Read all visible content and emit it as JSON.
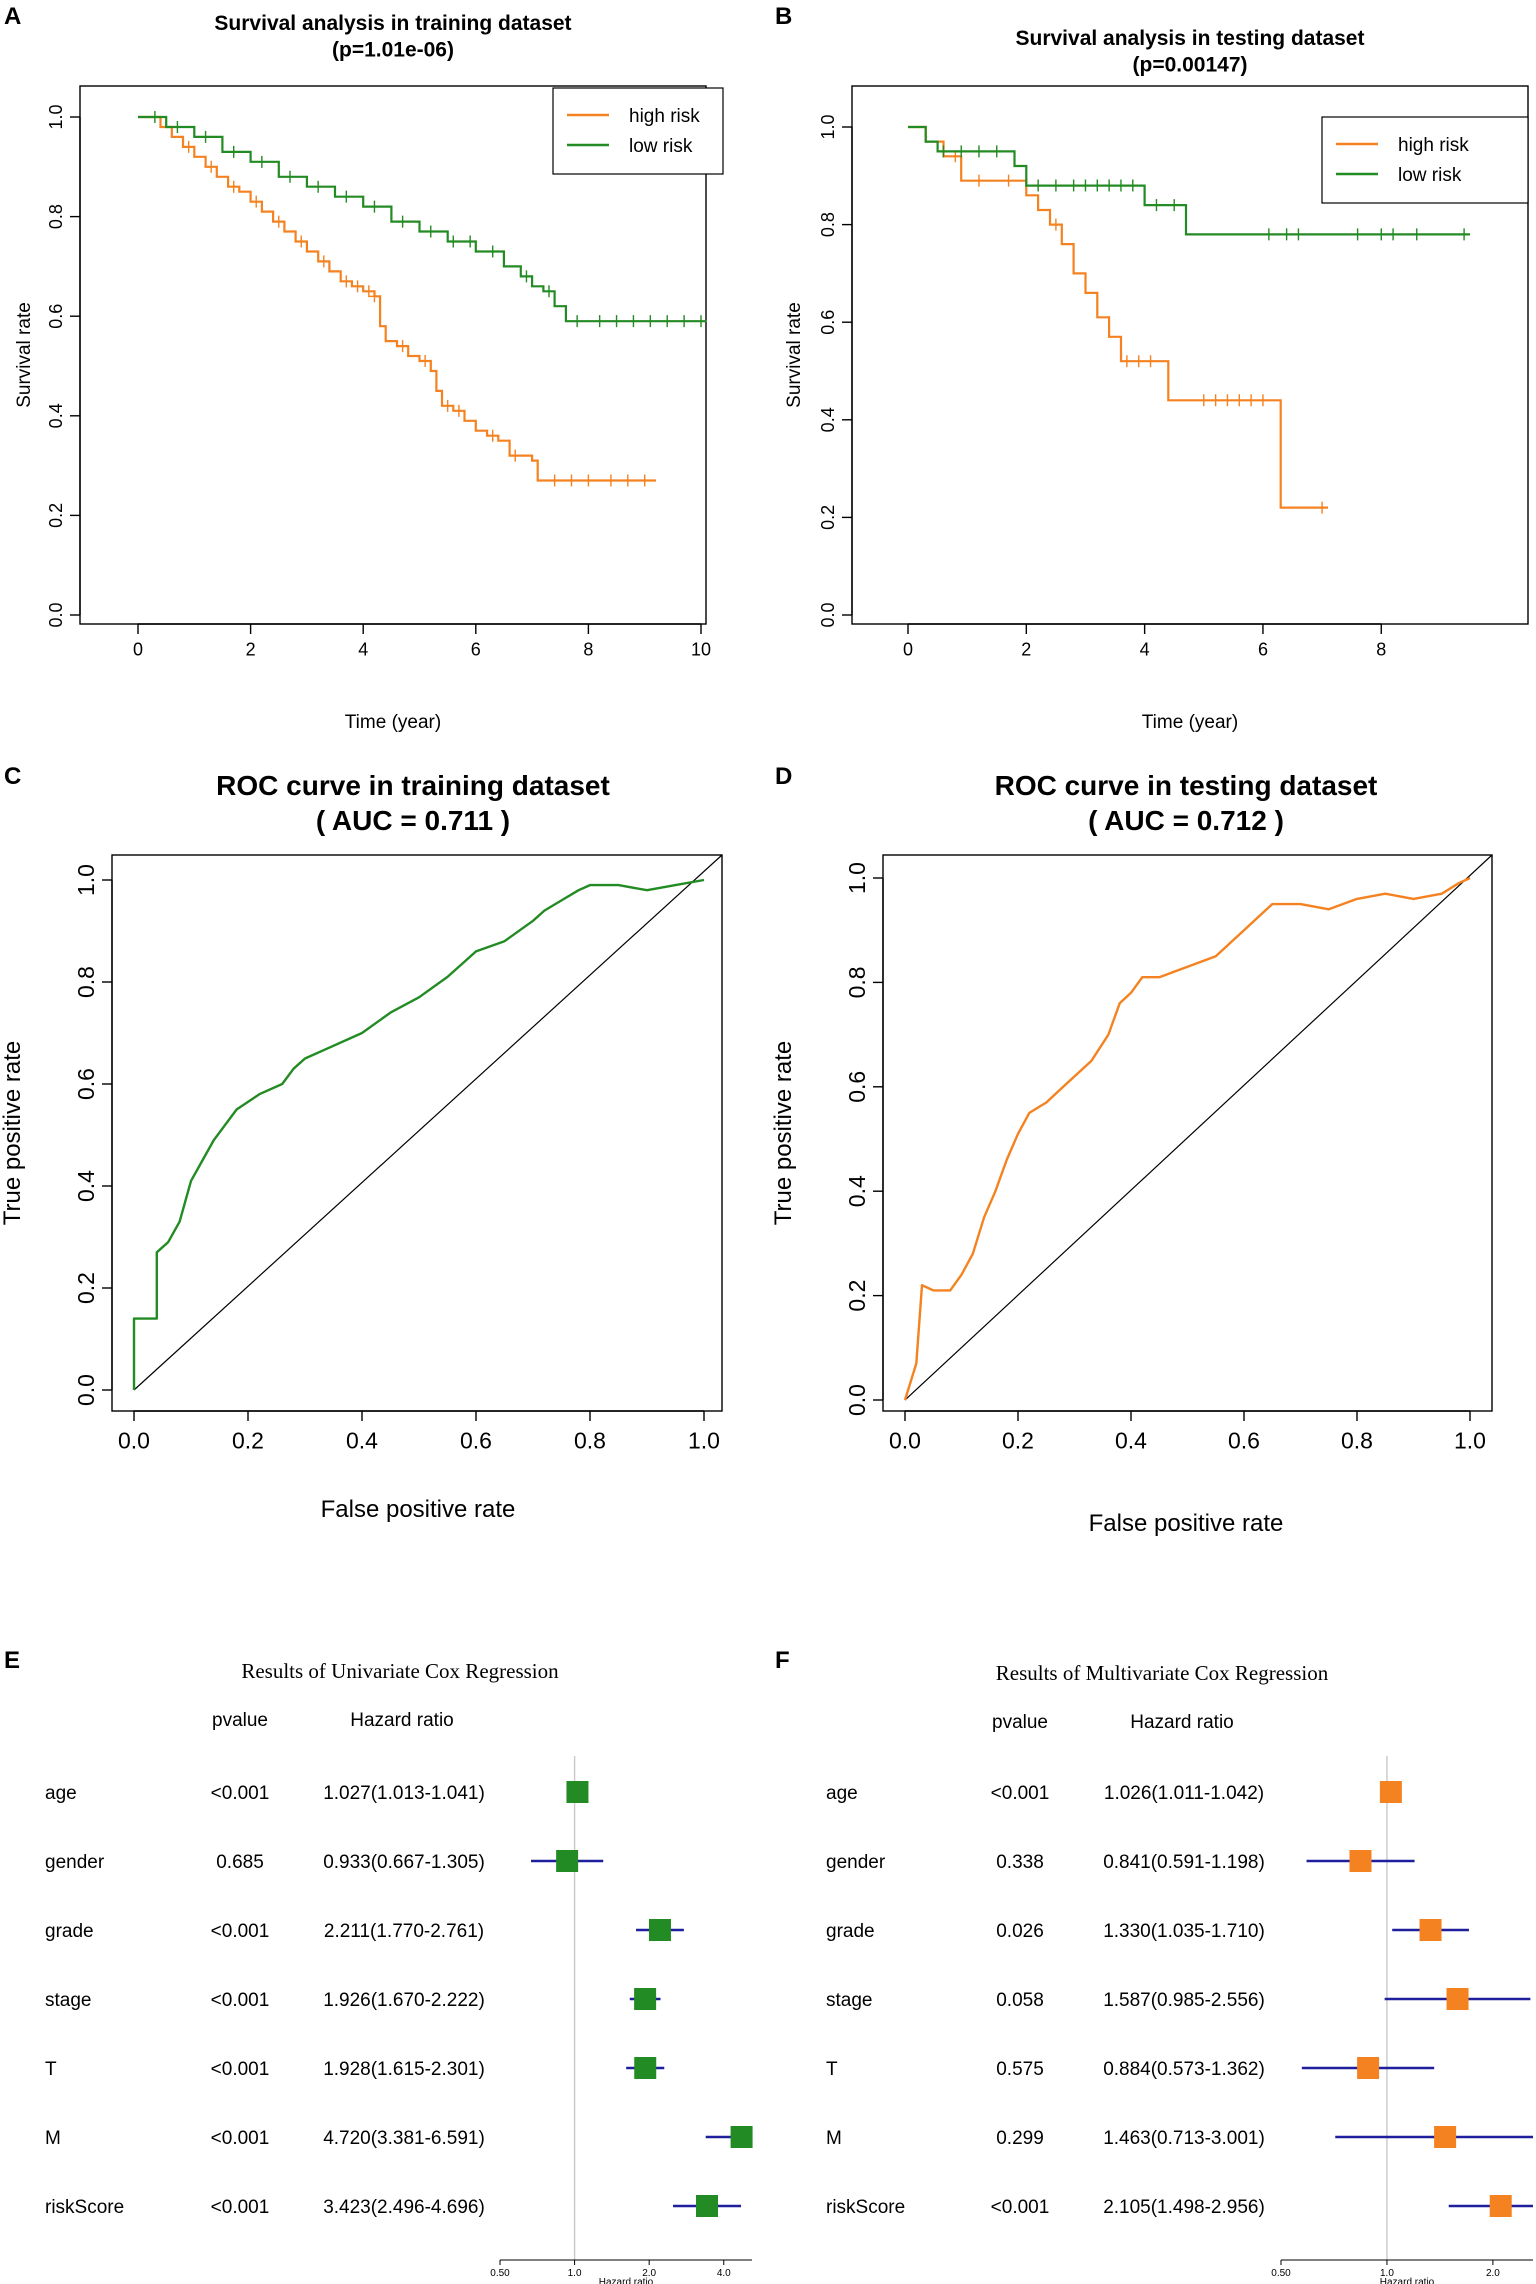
{
  "colors": {
    "high": "#F58220",
    "low": "#238B23",
    "ci": "#1F1F9E",
    "axis": "#333333",
    "ref": "#C8C8C8"
  },
  "chart_data": [
    {
      "panel": "A",
      "type": "line",
      "subtype": "kaplan-meier",
      "title": "Survival analysis in training dataset",
      "subtitle": "(p=1.01e-06)",
      "xlabel": "Time (year)",
      "ylabel": "Survival rate",
      "xlim": [
        0,
        10
      ],
      "ylim": [
        0,
        1
      ],
      "xticks": [
        "0",
        "2",
        "4",
        "6",
        "8",
        "10"
      ],
      "yticks": [
        "0.0",
        "0.2",
        "0.4",
        "0.6",
        "0.8",
        "1.0"
      ],
      "legend": [
        "high risk",
        "low risk"
      ],
      "legend_position": "top-right",
      "series": [
        {
          "name": "high risk",
          "color": "#F58220",
          "x": [
            0,
            0.4,
            0.6,
            0.8,
            1.0,
            1.2,
            1.4,
            1.6,
            1.8,
            2.0,
            2.2,
            2.4,
            2.6,
            2.8,
            3.0,
            3.2,
            3.4,
            3.6,
            3.8,
            4.0,
            4.2,
            4.3,
            4.4,
            4.6,
            4.8,
            5.0,
            5.2,
            5.3,
            5.4,
            5.6,
            5.8,
            6.0,
            6.2,
            6.4,
            6.6,
            6.8,
            7.0,
            7.1,
            9.2
          ],
          "y": [
            1.0,
            0.98,
            0.96,
            0.94,
            0.92,
            0.9,
            0.88,
            0.86,
            0.85,
            0.83,
            0.81,
            0.79,
            0.77,
            0.75,
            0.73,
            0.71,
            0.69,
            0.67,
            0.66,
            0.65,
            0.64,
            0.58,
            0.55,
            0.54,
            0.52,
            0.51,
            0.49,
            0.45,
            0.42,
            0.41,
            0.39,
            0.37,
            0.36,
            0.35,
            0.32,
            0.32,
            0.31,
            0.27,
            0.27
          ],
          "censor_x": [
            0.9,
            1.3,
            1.7,
            2.1,
            2.5,
            2.9,
            3.3,
            3.7,
            3.9,
            4.1,
            4.2,
            4.7,
            5.1,
            5.5,
            5.7,
            6.3,
            6.7,
            7.4,
            7.7,
            8.0,
            8.4,
            8.7,
            9.0
          ]
        },
        {
          "name": "low risk",
          "color": "#238B23",
          "x": [
            0,
            0.5,
            1.0,
            1.5,
            2.0,
            2.5,
            3.0,
            3.5,
            4.0,
            4.5,
            5.0,
            5.5,
            6.0,
            6.5,
            6.8,
            7.0,
            7.2,
            7.4,
            7.6,
            10.1
          ],
          "y": [
            1.0,
            0.98,
            0.96,
            0.93,
            0.91,
            0.88,
            0.86,
            0.84,
            0.82,
            0.79,
            0.77,
            0.75,
            0.73,
            0.7,
            0.68,
            0.66,
            0.65,
            0.62,
            0.59,
            0.59
          ],
          "censor_x": [
            0.3,
            0.7,
            1.2,
            1.7,
            2.2,
            2.7,
            3.2,
            3.7,
            4.2,
            4.7,
            5.2,
            5.6,
            5.9,
            6.3,
            6.9,
            7.3,
            7.8,
            8.2,
            8.5,
            8.8,
            9.1,
            9.4,
            9.7,
            10.0
          ]
        }
      ]
    },
    {
      "panel": "B",
      "type": "line",
      "subtype": "kaplan-meier",
      "title": "Survival analysis in testing dataset",
      "subtitle": "(p=0.00147)",
      "xlabel": "Time (year)",
      "ylabel": "Survival rate",
      "xlim": [
        0,
        9.5
      ],
      "ylim": [
        0,
        1
      ],
      "xticks": [
        "0",
        "2",
        "4",
        "6",
        "8"
      ],
      "yticks": [
        "0.0",
        "0.2",
        "0.4",
        "0.6",
        "0.8",
        "1.0"
      ],
      "legend": [
        "high risk",
        "low risk"
      ],
      "legend_position": "top-right",
      "series": [
        {
          "name": "high risk",
          "color": "#F58220",
          "x": [
            0,
            0.3,
            0.6,
            0.9,
            1.5,
            2.0,
            2.2,
            2.4,
            2.6,
            2.8,
            3.0,
            3.2,
            3.4,
            3.6,
            3.8,
            4.4,
            5.5,
            6.3,
            7.1
          ],
          "y": [
            1.0,
            0.97,
            0.94,
            0.89,
            0.89,
            0.86,
            0.83,
            0.8,
            0.76,
            0.7,
            0.66,
            0.61,
            0.57,
            0.52,
            0.52,
            0.44,
            0.44,
            0.22,
            0.22
          ],
          "censor_x": [
            0.8,
            1.2,
            1.7,
            2.5,
            3.7,
            3.9,
            4.1,
            5.0,
            5.2,
            5.4,
            5.6,
            5.8,
            6.0,
            7.0
          ]
        },
        {
          "name": "low risk",
          "color": "#238B23",
          "x": [
            0,
            0.3,
            0.5,
            1.0,
            1.8,
            2.0,
            4.0,
            4.7,
            9.5
          ],
          "y": [
            1.0,
            0.97,
            0.95,
            0.95,
            0.92,
            0.88,
            0.84,
            0.78,
            0.78
          ],
          "censor_x": [
            0.6,
            0.9,
            1.2,
            1.5,
            2.2,
            2.5,
            2.8,
            3.0,
            3.2,
            3.4,
            3.6,
            3.8,
            4.2,
            4.5,
            6.1,
            6.4,
            6.6,
            7.6,
            8.0,
            8.2,
            8.6,
            9.4
          ]
        }
      ]
    },
    {
      "panel": "C",
      "type": "line",
      "subtype": "roc",
      "title": "ROC curve in training dataset",
      "subtitle": "( AUC =  0.711 )",
      "xlabel": "False positive rate",
      "ylabel": "True positive rate",
      "xlim": [
        0,
        1
      ],
      "ylim": [
        0,
        1
      ],
      "xticks": [
        "0.0",
        "0.2",
        "0.4",
        "0.6",
        "0.8",
        "1.0"
      ],
      "yticks": [
        "0.0",
        "0.2",
        "0.4",
        "0.6",
        "0.8",
        "1.0"
      ],
      "auc": 0.711,
      "series": [
        {
          "name": "ROC",
          "color": "#238B23",
          "x": [
            0,
            0,
            0.04,
            0.04,
            0.06,
            0.08,
            0.1,
            0.12,
            0.14,
            0.16,
            0.18,
            0.22,
            0.26,
            0.28,
            0.3,
            0.34,
            0.4,
            0.45,
            0.5,
            0.55,
            0.58,
            0.6,
            0.65,
            0.7,
            0.72,
            0.75,
            0.78,
            0.8,
            0.85,
            0.9,
            0.95,
            1.0
          ],
          "y": [
            0,
            0.14,
            0.14,
            0.27,
            0.29,
            0.33,
            0.41,
            0.45,
            0.49,
            0.52,
            0.55,
            0.58,
            0.6,
            0.63,
            0.65,
            0.67,
            0.7,
            0.74,
            0.77,
            0.81,
            0.84,
            0.86,
            0.88,
            0.92,
            0.94,
            0.96,
            0.98,
            0.99,
            0.99,
            0.98,
            0.99,
            1.0
          ]
        }
      ]
    },
    {
      "panel": "D",
      "type": "line",
      "subtype": "roc",
      "title": "ROC curve in testing dataset",
      "subtitle": "( AUC =  0.712 )",
      "xlabel": "False positive rate",
      "ylabel": "True positive rate",
      "xlim": [
        0,
        1
      ],
      "ylim": [
        0,
        1
      ],
      "xticks": [
        "0.0",
        "0.2",
        "0.4",
        "0.6",
        "0.8",
        "1.0"
      ],
      "yticks": [
        "0.0",
        "0.2",
        "0.4",
        "0.6",
        "0.8",
        "1.0"
      ],
      "auc": 0.712,
      "series": [
        {
          "name": "ROC",
          "color": "#F58220",
          "x": [
            0,
            0.02,
            0.03,
            0.05,
            0.08,
            0.1,
            0.12,
            0.14,
            0.16,
            0.18,
            0.2,
            0.22,
            0.25,
            0.28,
            0.3,
            0.33,
            0.36,
            0.38,
            0.4,
            0.42,
            0.45,
            0.5,
            0.55,
            0.58,
            0.6,
            0.62,
            0.65,
            0.7,
            0.75,
            0.8,
            0.85,
            0.9,
            0.95,
            0.98,
            1.0
          ],
          "y": [
            0,
            0.07,
            0.22,
            0.21,
            0.21,
            0.24,
            0.28,
            0.35,
            0.4,
            0.46,
            0.51,
            0.55,
            0.57,
            0.6,
            0.62,
            0.65,
            0.7,
            0.76,
            0.78,
            0.81,
            0.81,
            0.83,
            0.85,
            0.88,
            0.9,
            0.92,
            0.95,
            0.95,
            0.94,
            0.96,
            0.97,
            0.96,
            0.97,
            0.99,
            1.0
          ]
        }
      ]
    },
    {
      "panel": "E",
      "type": "forest",
      "title": "Results of Univariate Cox Regression",
      "col_pvalue": "pvalue",
      "col_hr": "Hazard ratio",
      "xlabel": "Hazard ratio",
      "xscale": "log",
      "xlim": [
        0.5,
        5.2
      ],
      "xticks": [
        0.5,
        1.0,
        2.0,
        4.0
      ],
      "xtick_labels": [
        "0.50",
        "1.0",
        "2.0",
        "4.0"
      ],
      "marker_color": "#238B23",
      "rows": [
        {
          "name": "age",
          "pvalue": "<0.001",
          "hr_text": "1.027(1.013-1.041)",
          "hr": 1.027,
          "lo": 1.013,
          "hi": 1.041
        },
        {
          "name": "gender",
          "pvalue": "0.685",
          "hr_text": "0.933(0.667-1.305)",
          "hr": 0.933,
          "lo": 0.667,
          "hi": 1.305
        },
        {
          "name": "grade",
          "pvalue": "<0.001",
          "hr_text": "2.211(1.770-2.761)",
          "hr": 2.211,
          "lo": 1.77,
          "hi": 2.761
        },
        {
          "name": "stage",
          "pvalue": "<0.001",
          "hr_text": "1.926(1.670-2.222)",
          "hr": 1.926,
          "lo": 1.67,
          "hi": 2.222
        },
        {
          "name": "T",
          "pvalue": "<0.001",
          "hr_text": "1.928(1.615-2.301)",
          "hr": 1.928,
          "lo": 1.615,
          "hi": 2.301
        },
        {
          "name": "M",
          "pvalue": "<0.001",
          "hr_text": "4.720(3.381-6.591)",
          "hr": 4.72,
          "lo": 3.381,
          "hi": 6.591
        },
        {
          "name": "riskScore",
          "pvalue": "<0.001",
          "hr_text": "3.423(2.496-4.696)",
          "hr": 3.423,
          "lo": 2.496,
          "hi": 4.696
        }
      ]
    },
    {
      "panel": "F",
      "type": "forest",
      "title": "Results of Multivariate Cox Regression",
      "col_pvalue": "pvalue",
      "col_hr": "Hazard ratio",
      "xlabel": "Hazard ratio",
      "xscale": "log",
      "xlim": [
        0.5,
        2.6
      ],
      "xticks": [
        0.5,
        1.0,
        2.0
      ],
      "xtick_labels": [
        "0.50",
        "1.0",
        "2.0"
      ],
      "marker_color": "#F58220",
      "rows": [
        {
          "name": "age",
          "pvalue": "<0.001",
          "hr_text": "1.026(1.011-1.042)",
          "hr": 1.026,
          "lo": 1.011,
          "hi": 1.042
        },
        {
          "name": "gender",
          "pvalue": "0.338",
          "hr_text": "0.841(0.591-1.198)",
          "hr": 0.841,
          "lo": 0.591,
          "hi": 1.198
        },
        {
          "name": "grade",
          "pvalue": "0.026",
          "hr_text": "1.330(1.035-1.710)",
          "hr": 1.33,
          "lo": 1.035,
          "hi": 1.71
        },
        {
          "name": "stage",
          "pvalue": "0.058",
          "hr_text": "1.587(0.985-2.556)",
          "hr": 1.587,
          "lo": 0.985,
          "hi": 2.556
        },
        {
          "name": "T",
          "pvalue": "0.575",
          "hr_text": "0.884(0.573-1.362)",
          "hr": 0.884,
          "lo": 0.573,
          "hi": 1.362
        },
        {
          "name": "M",
          "pvalue": "0.299",
          "hr_text": "1.463(0.713-3.001)",
          "hr": 1.463,
          "lo": 0.713,
          "hi": 3.001
        },
        {
          "name": "riskScore",
          "pvalue": "<0.001",
          "hr_text": "2.105(1.498-2.956)",
          "hr": 2.105,
          "lo": 1.498,
          "hi": 2.956
        }
      ]
    }
  ]
}
